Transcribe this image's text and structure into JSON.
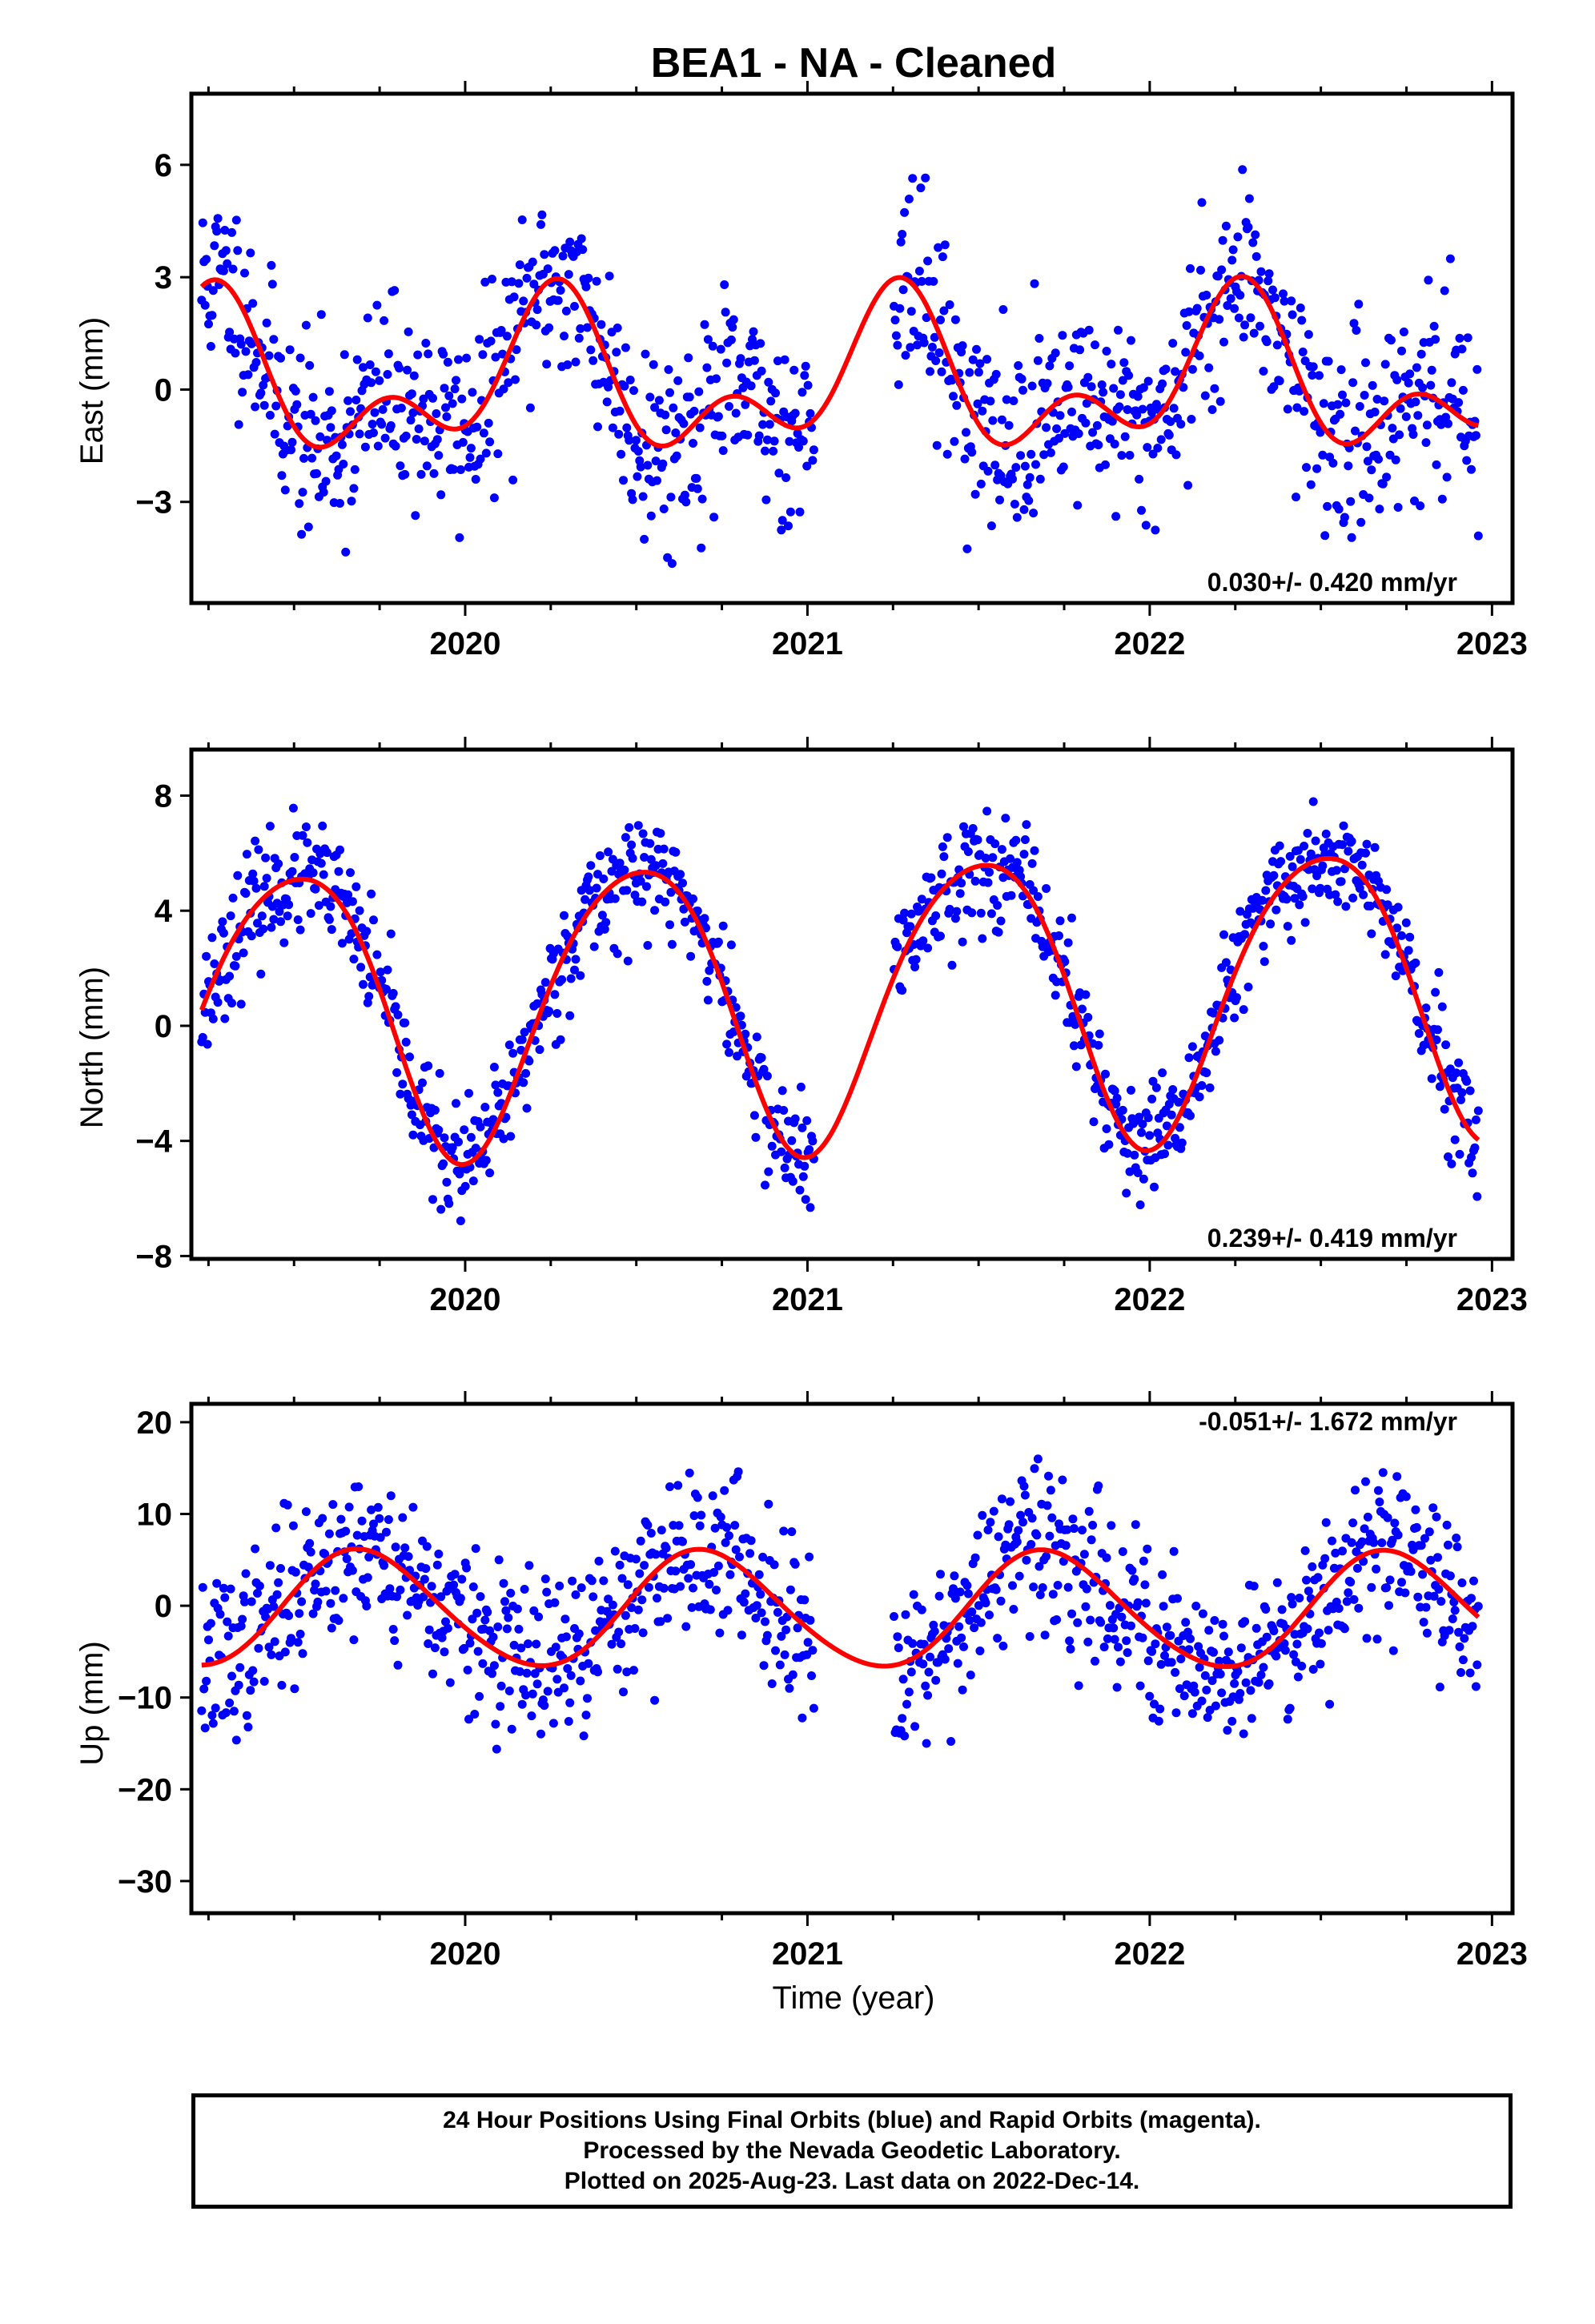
{
  "title": "BEA1  - NA - Cleaned",
  "xlabel": "Time (year)",
  "footer": {
    "line1": "24 Hour Positions Using Final Orbits (blue) and Rapid Orbits (magenta).",
    "line2": "Processed by the Nevada Geodetic Laboratory.",
    "line3": "Plotted on 2025-Aug-23. Last data on 2022-Dec-14."
  },
  "colors": {
    "points": "#0000ff",
    "fit": "#ff0000",
    "frame": "#000000"
  },
  "chart_data": [
    {
      "type": "scatter",
      "ylabel": "East (mm)",
      "rate_text": "0.030+/- 0.420 mm/yr",
      "xlim": [
        2019.2,
        2023.06
      ],
      "ylim": [
        -5.7,
        7.9
      ],
      "xticks": [
        2020,
        2021,
        2022,
        2023
      ],
      "yticks": [
        -3,
        0,
        3,
        6
      ],
      "ytick_labels": [
        "−3",
        "0",
        "3",
        "6"
      ],
      "data_range": [
        2019.23,
        2022.96
      ],
      "model": {
        "slope": 0.03,
        "terms": [
          [
            1.6,
            0.0
          ],
          [
            1.2,
            0.15
          ]
        ],
        "offset": 0.2,
        "ref": 2021.0
      },
      "scatter_sd": 1.3,
      "n_points": 1100,
      "seed": 11
    },
    {
      "type": "scatter",
      "ylabel": "North (mm)",
      "rate_text": "0.239+/- 0.419 mm/yr",
      "xlim": [
        2019.2,
        2023.06
      ],
      "ylim": [
        -8.1,
        9.6
      ],
      "xticks": [
        2020,
        2021,
        2022,
        2023
      ],
      "yticks": [
        -8,
        -4,
        0,
        4,
        8
      ],
      "ytick_labels": [
        "−8",
        "−4",
        "0",
        "4",
        "8"
      ],
      "data_range": [
        2019.23,
        2022.96
      ],
      "model": {
        "slope": 0.239,
        "terms": [
          [
            5.0,
            0.25
          ],
          [
            0.6,
            0.1
          ]
        ],
        "offset": 1.0,
        "ref": 2021.0
      },
      "scatter_sd": 1.0,
      "n_points": 1100,
      "seed": 23
    },
    {
      "type": "scatter",
      "ylabel": "Up (mm)",
      "rate_text": "-0.051+/- 1.672 mm/yr",
      "xlim": [
        2019.2,
        2023.06
      ],
      "ylim": [
        -33.5,
        22.0
      ],
      "xticks": [
        2020,
        2021,
        2022,
        2023
      ],
      "yticks": [
        -30,
        -20,
        -10,
        0,
        10,
        20
      ],
      "ytick_labels": [
        "−30",
        "−20",
        "−10",
        "0",
        "10",
        "20"
      ],
      "data_range": [
        2019.23,
        2022.96
      ],
      "model": {
        "slope": -0.051,
        "terms": [
          [
            6.3,
            0.45
          ],
          [
            0.5,
            0.0
          ]
        ],
        "offset": -0.5,
        "ref": 2021.0
      },
      "scatter_sd": 4.5,
      "n_points": 1100,
      "seed": 37
    }
  ]
}
